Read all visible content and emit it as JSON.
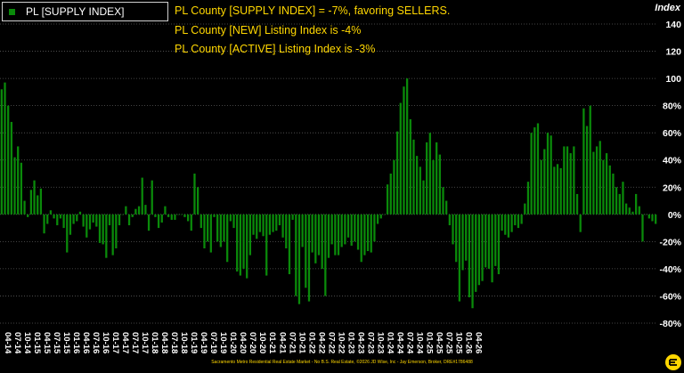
{
  "legend": {
    "label": "PL [SUPPLY INDEX]"
  },
  "annotations": [
    "PL County [SUPPLY INDEX] = -7%, favoring SELLERS.",
    "PL County [NEW] Listing Index is -4%",
    "PL County [ACTIVE] Listing Index is -3%"
  ],
  "footer": "Sacramento Metro Residential Real Estate Market - No B.S. Real Estate, ©2026 JD Wise, Inc - Jay Emerson, Broker, DRE#1786488",
  "colors": {
    "bar": "#0a8a0a",
    "background": "#000000",
    "annotation": "#ffd700",
    "gridline": "#5a5a5a"
  },
  "chart_data": {
    "type": "bar",
    "ylabel": "Index",
    "ylim": [
      -80,
      140
    ],
    "yticks": [
      -80,
      -60,
      -40,
      -20,
      0,
      20,
      40,
      60,
      80,
      100,
      120,
      140
    ],
    "ytick_labels": [
      "-80%",
      "-60%",
      "-40%",
      "-20%",
      "0%",
      "20%",
      "40%",
      "60%",
      "80%",
      100,
      120,
      140
    ],
    "grid": "horizontal",
    "legend_position": "top-left",
    "x_tick_labels": [
      "04-14",
      "07-14",
      "10-14",
      "01-15",
      "04-15",
      "07-15",
      "10-15",
      "01-16",
      "04-16",
      "07-16",
      "10-16",
      "01-17",
      "04-17",
      "07-17",
      "10-17",
      "01-18",
      "04-18",
      "07-18",
      "10-18",
      "01-19",
      "04-19",
      "07-19",
      "10-19",
      "01-20",
      "04-20",
      "07-20",
      "10-20",
      "01-21",
      "04-21",
      "07-21",
      "10-21",
      "01-22",
      "04-22",
      "07-22",
      "10-22",
      "01-23",
      "04-23",
      "07-23",
      "10-23",
      "01-24",
      "04-24",
      "07-24",
      "10-24",
      "01-25",
      "04-25",
      "07-25",
      "10-25",
      "01-26",
      "04-26"
    ],
    "series": [
      {
        "start": "2014-04",
        "values": [
          92,
          97,
          80,
          68,
          42,
          50,
          38,
          10,
          -2,
          18,
          25,
          14,
          19,
          -14,
          -7,
          3,
          -3,
          -8,
          -3,
          -10,
          -28,
          -15,
          -7,
          -5,
          2,
          -9,
          -17,
          -11,
          -6,
          -9,
          -21,
          -22,
          -32,
          -8,
          -30,
          -25,
          -8,
          0,
          6,
          -8,
          -2,
          4,
          6,
          27,
          7,
          -12,
          25,
          -2,
          -10,
          -6,
          6,
          -2,
          -4,
          -4,
          0,
          0,
          -2,
          -5,
          -12,
          30,
          20,
          -10,
          -25,
          -20,
          -28,
          -2,
          -20,
          -24,
          -20,
          -35,
          -5,
          -10,
          -42,
          -45,
          -40,
          -47,
          -30,
          -15,
          -18,
          -13,
          -16,
          -45,
          -15,
          -13,
          -12,
          -8,
          -17,
          -25,
          -44,
          -4,
          -60,
          -66,
          -24,
          -54,
          -64,
          -28,
          -36,
          -30,
          -40,
          -60,
          -32,
          -22,
          -30,
          -30,
          -24,
          -22,
          -17,
          -23,
          -20,
          -26,
          -35,
          -30,
          -27,
          -28,
          -20,
          -7,
          -3,
          0,
          22,
          30,
          40,
          61,
          82,
          94,
          100,
          70,
          55,
          43,
          35,
          25,
          53,
          60,
          40,
          53,
          44,
          20,
          10,
          -8,
          -22,
          -35,
          -64,
          -41,
          -34,
          -61,
          -69,
          -57,
          -52,
          -49,
          -39,
          -40,
          -50,
          -38,
          -44,
          -12,
          -15,
          -17,
          -13,
          -8,
          -10,
          -7,
          8,
          24,
          60,
          64,
          67,
          40,
          48,
          60,
          58,
          35,
          37,
          34,
          50,
          50,
          45,
          50,
          15,
          -13,
          78,
          65,
          80,
          46,
          50,
          54,
          40,
          45,
          36,
          30,
          20,
          15,
          24,
          8,
          5,
          2,
          15,
          6,
          -20,
          0,
          -3,
          -5,
          -7
        ]
      }
    ]
  }
}
